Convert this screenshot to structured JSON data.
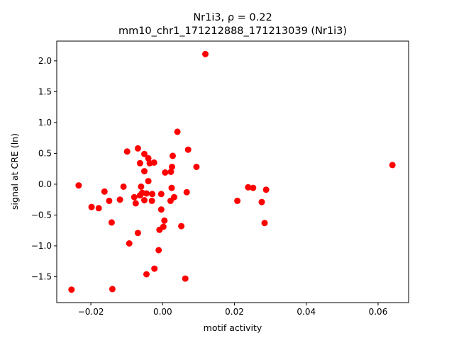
{
  "chart_data": {
    "type": "scatter",
    "title_line1": "Nr1i3, ρ = 0.22",
    "title_line2": "mm10_chr1_171212888_171213039 (Nr1i3)",
    "xlabel": "motif activity",
    "ylabel": "signal at CRE (ln)",
    "xlim": [
      -0.0295,
      0.0685
    ],
    "ylim": [
      -1.92,
      2.32
    ],
    "xticks": [
      {
        "value": -0.02,
        "label": "−0.02"
      },
      {
        "value": 0.0,
        "label": "0.00"
      },
      {
        "value": 0.02,
        "label": "0.02"
      },
      {
        "value": 0.04,
        "label": "0.04"
      },
      {
        "value": 0.06,
        "label": "0.06"
      }
    ],
    "yticks": [
      {
        "value": -1.5,
        "label": "−1.5"
      },
      {
        "value": -1.0,
        "label": "−1.0"
      },
      {
        "value": -0.5,
        "label": "−0.5"
      },
      {
        "value": 0.0,
        "label": "0.0"
      },
      {
        "value": 0.5,
        "label": "0.5"
      },
      {
        "value": 1.0,
        "label": "1.0"
      },
      {
        "value": 1.5,
        "label": "1.5"
      },
      {
        "value": 2.0,
        "label": "2.0"
      }
    ],
    "grid": false,
    "marker_color": "#ff0000",
    "points": [
      [
        -0.0254,
        -1.71
      ],
      [
        -0.0234,
        -0.02
      ],
      [
        -0.0198,
        -0.37
      ],
      [
        -0.0178,
        -0.39
      ],
      [
        -0.0162,
        -0.12
      ],
      [
        -0.0149,
        -0.27
      ],
      [
        -0.0142,
        -0.62
      ],
      [
        -0.014,
        -1.7
      ],
      [
        -0.0119,
        -0.25
      ],
      [
        -0.0109,
        -0.04
      ],
      [
        -0.0099,
        0.53
      ],
      [
        -0.0093,
        -0.96
      ],
      [
        -0.0079,
        -0.21
      ],
      [
        -0.0075,
        -0.31
      ],
      [
        -0.0069,
        0.58
      ],
      [
        -0.0069,
        -0.79
      ],
      [
        -0.0063,
        -0.18
      ],
      [
        -0.0063,
        0.34
      ],
      [
        -0.006,
        -0.04
      ],
      [
        -0.0057,
        -0.14
      ],
      [
        -0.0051,
        0.49
      ],
      [
        -0.0051,
        0.21
      ],
      [
        -0.0051,
        -0.26
      ],
      [
        -0.0045,
        -0.15
      ],
      [
        -0.0045,
        -1.46
      ],
      [
        -0.004,
        0.05
      ],
      [
        -0.004,
        0.42
      ],
      [
        -0.0036,
        0.34
      ],
      [
        -0.003,
        -0.27
      ],
      [
        -0.0029,
        -0.16
      ],
      [
        -0.0024,
        0.35
      ],
      [
        -0.0023,
        -1.37
      ],
      [
        -0.0011,
        -1.07
      ],
      [
        -0.0009,
        -0.74
      ],
      [
        -0.0004,
        -0.16
      ],
      [
        -0.0004,
        -0.41
      ],
      [
        0.0002,
        -0.69
      ],
      [
        0.0005,
        -0.59
      ],
      [
        0.0007,
        0.19
      ],
      [
        0.0022,
        -0.27
      ],
      [
        0.0023,
        0.2
      ],
      [
        0.0025,
        -0.06
      ],
      [
        0.0026,
        0.28
      ],
      [
        0.0028,
        0.46
      ],
      [
        0.0032,
        -0.21
      ],
      [
        0.0041,
        0.85
      ],
      [
        0.0052,
        -0.68
      ],
      [
        0.0063,
        -1.53
      ],
      [
        0.0067,
        -0.13
      ],
      [
        0.0071,
        0.56
      ],
      [
        0.0094,
        0.28
      ],
      [
        0.0119,
        2.11
      ],
      [
        0.0208,
        -0.27
      ],
      [
        0.0238,
        -0.05
      ],
      [
        0.0252,
        -0.06
      ],
      [
        0.0276,
        -0.29
      ],
      [
        0.0284,
        -0.63
      ],
      [
        0.0288,
        -0.09
      ],
      [
        0.064,
        0.31
      ]
    ]
  }
}
